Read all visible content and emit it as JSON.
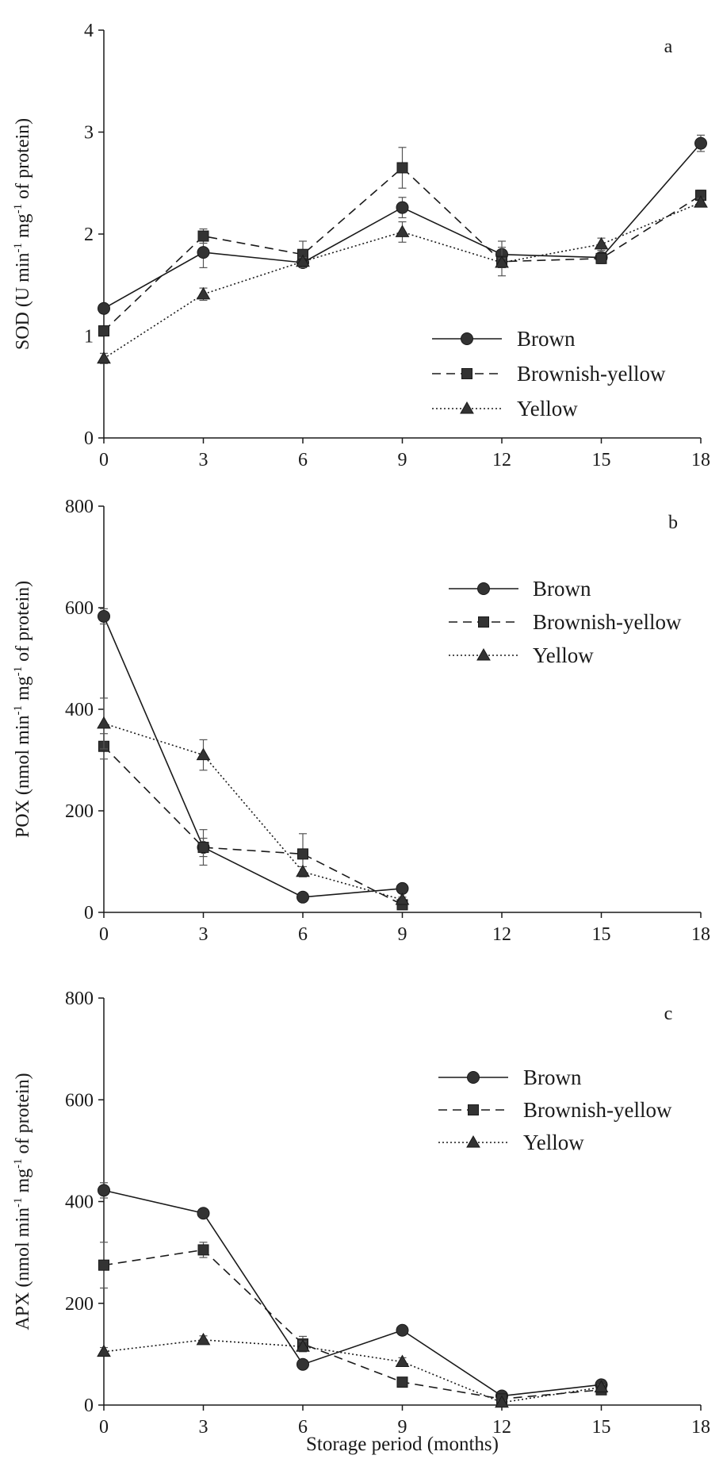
{
  "chart_data": [
    {
      "type": "line",
      "panel": "a",
      "ylabel": "SOD (U min-1 mg-1 of protein)",
      "ylabel_parts": [
        "SOD (U min",
        "-1",
        " mg",
        "-1",
        " of protein)"
      ],
      "x": [
        0,
        3,
        6,
        9,
        12,
        15,
        18
      ],
      "x_ticks": [
        "0",
        "3",
        "6",
        "9",
        "12",
        "15",
        "18"
      ],
      "xlim": [
        0,
        18
      ],
      "ylim": [
        0,
        4
      ],
      "y_ticks": [
        "0",
        "1",
        "2",
        "3",
        "4"
      ],
      "grid": false,
      "legend_position": "lower-right",
      "series": [
        {
          "name": "Brown",
          "values": [
            1.27,
            1.82,
            1.72,
            2.26,
            1.8,
            1.77,
            2.89
          ],
          "errors": [
            0.04,
            0.15,
            0.05,
            0.1,
            0.13,
            0.05,
            0.08
          ]
        },
        {
          "name": "Brownish-yellow",
          "values": [
            1.05,
            1.98,
            1.8,
            2.65,
            1.73,
            1.76,
            2.38
          ],
          "errors": [
            0.04,
            0.07,
            0.13,
            0.2,
            0.14,
            0.05,
            0.05
          ]
        },
        {
          "name": "Yellow",
          "values": [
            0.78,
            1.41,
            1.73,
            2.02,
            1.72,
            1.9,
            2.31
          ],
          "errors": [
            0.05,
            0.06,
            0.04,
            0.1,
            0.04,
            0.06,
            0.04
          ]
        }
      ]
    },
    {
      "type": "line",
      "panel": "b",
      "ylabel": "POX (nmol min-1 mg-1 of protein)",
      "ylabel_parts": [
        "POX (nmol min",
        "-1",
        " mg",
        "-1",
        " of protein)"
      ],
      "x": [
        0,
        3,
        6,
        9,
        12,
        15,
        18
      ],
      "x_ticks": [
        "0",
        "3",
        "6",
        "9",
        "12",
        "15",
        "18"
      ],
      "xlim": [
        0,
        18
      ],
      "ylim": [
        0,
        800
      ],
      "y_ticks": [
        "0",
        "200",
        "400",
        "600",
        "800"
      ],
      "grid": false,
      "legend_position": "upper-right",
      "series": [
        {
          "name": "Brown",
          "values": [
            583,
            128,
            30,
            47,
            null,
            null,
            null
          ],
          "errors": [
            15,
            18,
            5,
            8,
            null,
            null,
            null
          ]
        },
        {
          "name": "Brownish-yellow",
          "values": [
            327,
            128,
            115,
            15,
            null,
            null,
            null
          ],
          "errors": [
            25,
            35,
            40,
            5,
            null,
            null,
            null
          ]
        },
        {
          "name": "Yellow",
          "values": [
            372,
            310,
            80,
            25,
            null,
            null,
            null
          ],
          "errors": [
            50,
            30,
            10,
            5,
            null,
            null,
            null
          ]
        }
      ]
    },
    {
      "type": "line",
      "panel": "c",
      "ylabel": "APX (nmol min-1 mg-1 of protein)",
      "ylabel_parts": [
        "APX (nmol min",
        "-1",
        " mg",
        "-1",
        " of protein)"
      ],
      "xlabel": "Storage period (months)",
      "x": [
        0,
        3,
        6,
        9,
        12,
        15,
        18
      ],
      "x_ticks": [
        "0",
        "3",
        "6",
        "9",
        "12",
        "15",
        "18"
      ],
      "xlim": [
        0,
        18
      ],
      "ylim": [
        0,
        800
      ],
      "y_ticks": [
        "0",
        "200",
        "400",
        "600",
        "800"
      ],
      "grid": false,
      "legend_position": "upper-right",
      "series": [
        {
          "name": "Brown",
          "values": [
            422,
            377,
            80,
            147,
            18,
            40,
            null
          ],
          "errors": [
            15,
            8,
            8,
            8,
            5,
            5,
            null
          ]
        },
        {
          "name": "Brownish-yellow",
          "values": [
            275,
            305,
            120,
            45,
            12,
            30,
            null
          ],
          "errors": [
            45,
            15,
            15,
            5,
            5,
            5,
            null
          ]
        },
        {
          "name": "Yellow",
          "values": [
            105,
            128,
            115,
            85,
            5,
            35,
            null
          ],
          "errors": [
            8,
            8,
            10,
            8,
            3,
            5,
            null
          ]
        }
      ]
    }
  ],
  "series_styles": [
    {
      "marker": "circle",
      "dash": "solid"
    },
    {
      "marker": "square",
      "dash": "dashed"
    },
    {
      "marker": "triangle",
      "dash": "dotted"
    }
  ],
  "colors": {
    "line": "#1a1a1a",
    "marker": "#333333",
    "background": "#ffffff"
  }
}
